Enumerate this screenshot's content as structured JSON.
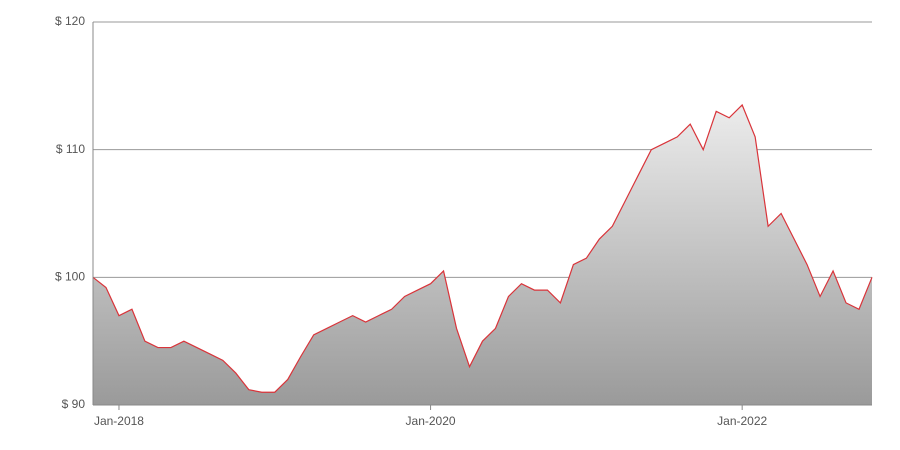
{
  "chart_data": {
    "type": "area",
    "x": [
      "2017-11",
      "2017-12",
      "2018-01",
      "2018-02",
      "2018-03",
      "2018-04",
      "2018-05",
      "2018-06",
      "2018-07",
      "2018-08",
      "2018-09",
      "2018-10",
      "2018-11",
      "2018-12",
      "2019-01",
      "2019-02",
      "2019-03",
      "2019-04",
      "2019-05",
      "2019-06",
      "2019-07",
      "2019-08",
      "2019-09",
      "2019-10",
      "2019-11",
      "2019-12",
      "2020-01",
      "2020-02",
      "2020-03",
      "2020-04",
      "2020-05",
      "2020-06",
      "2020-07",
      "2020-08",
      "2020-09",
      "2020-10",
      "2020-11",
      "2020-12",
      "2021-01",
      "2021-02",
      "2021-03",
      "2021-04",
      "2021-05",
      "2021-06",
      "2021-07",
      "2021-08",
      "2021-09",
      "2021-10",
      "2021-11",
      "2021-12",
      "2022-01",
      "2022-02",
      "2022-03",
      "2022-04",
      "2022-05",
      "2022-06",
      "2022-07",
      "2022-08",
      "2022-09",
      "2022-10",
      "2022-11"
    ],
    "values": [
      100,
      99.2,
      97,
      97.5,
      95,
      94.5,
      94.5,
      95,
      94.5,
      94,
      93.5,
      92.5,
      91.2,
      91,
      91,
      92,
      93.8,
      95.5,
      96,
      96.5,
      97,
      96.5,
      97,
      97.5,
      98.5,
      99,
      99.5,
      100.5,
      96,
      93,
      95,
      96,
      98.5,
      99.5,
      99,
      99,
      98,
      101,
      101.5,
      103,
      104,
      106,
      108,
      110,
      110.5,
      111,
      112,
      110,
      113,
      112.5,
      113.5,
      111,
      104,
      105,
      103,
      101,
      98.5,
      100.5,
      98,
      97.5,
      100
    ],
    "color": "#d9343a",
    "fill_top": "#ececec",
    "fill_bottom": "#9a9a9a",
    "xlim": [
      "2017-11",
      "2022-11"
    ],
    "xticks": [
      {
        "value": "2018-01",
        "label": "Jan-2018"
      },
      {
        "value": "2020-01",
        "label": "Jan-2020"
      },
      {
        "value": "2022-01",
        "label": "Jan-2022"
      }
    ],
    "ylim": [
      90,
      120
    ],
    "yticks": [
      {
        "value": 90,
        "label": "$ 90"
      },
      {
        "value": 100,
        "label": "$ 100"
      },
      {
        "value": 110,
        "label": "$ 110"
      },
      {
        "value": 120,
        "label": "$ 120"
      }
    ],
    "grid": true
  }
}
